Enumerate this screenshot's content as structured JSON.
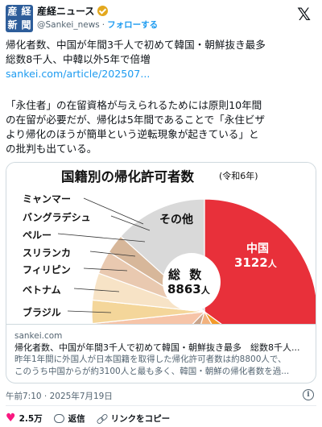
{
  "account": {
    "avatar_chars": [
      "産",
      "経",
      "新",
      "聞"
    ],
    "name": "産経ニュース",
    "handle": "@Sankei_news",
    "separator": "·",
    "follow_label": "フォローする",
    "x_logo": "𝕏"
  },
  "post": {
    "text_line1": "帰化者数、中国が年間3千人で初めて韓国・朝鮮抜き最多",
    "text_line2": "総数8千人、中韓以外5年で倍増",
    "link": "sankei.com/article/202507...",
    "quote_line1": "「永住者」の在留資格が与えられるためには原則10年間",
    "quote_line2": "の在留が必要だが、帰化は5年間であることで「永住ビザ",
    "quote_line3": "より帰化のほうが簡単という逆転現象が起きている」と",
    "quote_line4": "の批判も出ている。"
  },
  "card": {
    "domain": "sankei.com",
    "title": "帰化者数、中国が年間3千人で初めて韓国・朝鮮抜き最多　総数8千人...",
    "desc_line1": "昨年1年間に外国人が日本国籍を取得した帰化許可者数は約8800人で、",
    "desc_line2": "このうち中国からが約3100人と最も多く、韓国・朝鮮の帰化者数を過..."
  },
  "chart_data": {
    "type": "pie",
    "title": "国籍別の帰化許可者数",
    "subtitle": "(令和6年)",
    "total_label": "総 数",
    "total_value": "8863",
    "unit": "人",
    "labels": [
      "ミャンマー",
      "バングラデシュ",
      "ペルー",
      "スリランカ",
      "フィリピン",
      "ベトナム",
      "ブラジル"
    ],
    "china": {
      "name": "中国",
      "value": "3122"
    },
    "other_label": "その他"
  },
  "meta": {
    "timestamp": "午前7:10 · 2025年7月19日"
  },
  "actions": {
    "likes": "2.5万",
    "reply": "返信",
    "copy_link": "リンクをコピー"
  },
  "colors": {
    "china": "#e8303a",
    "accent_link": "#1d9bf0"
  }
}
